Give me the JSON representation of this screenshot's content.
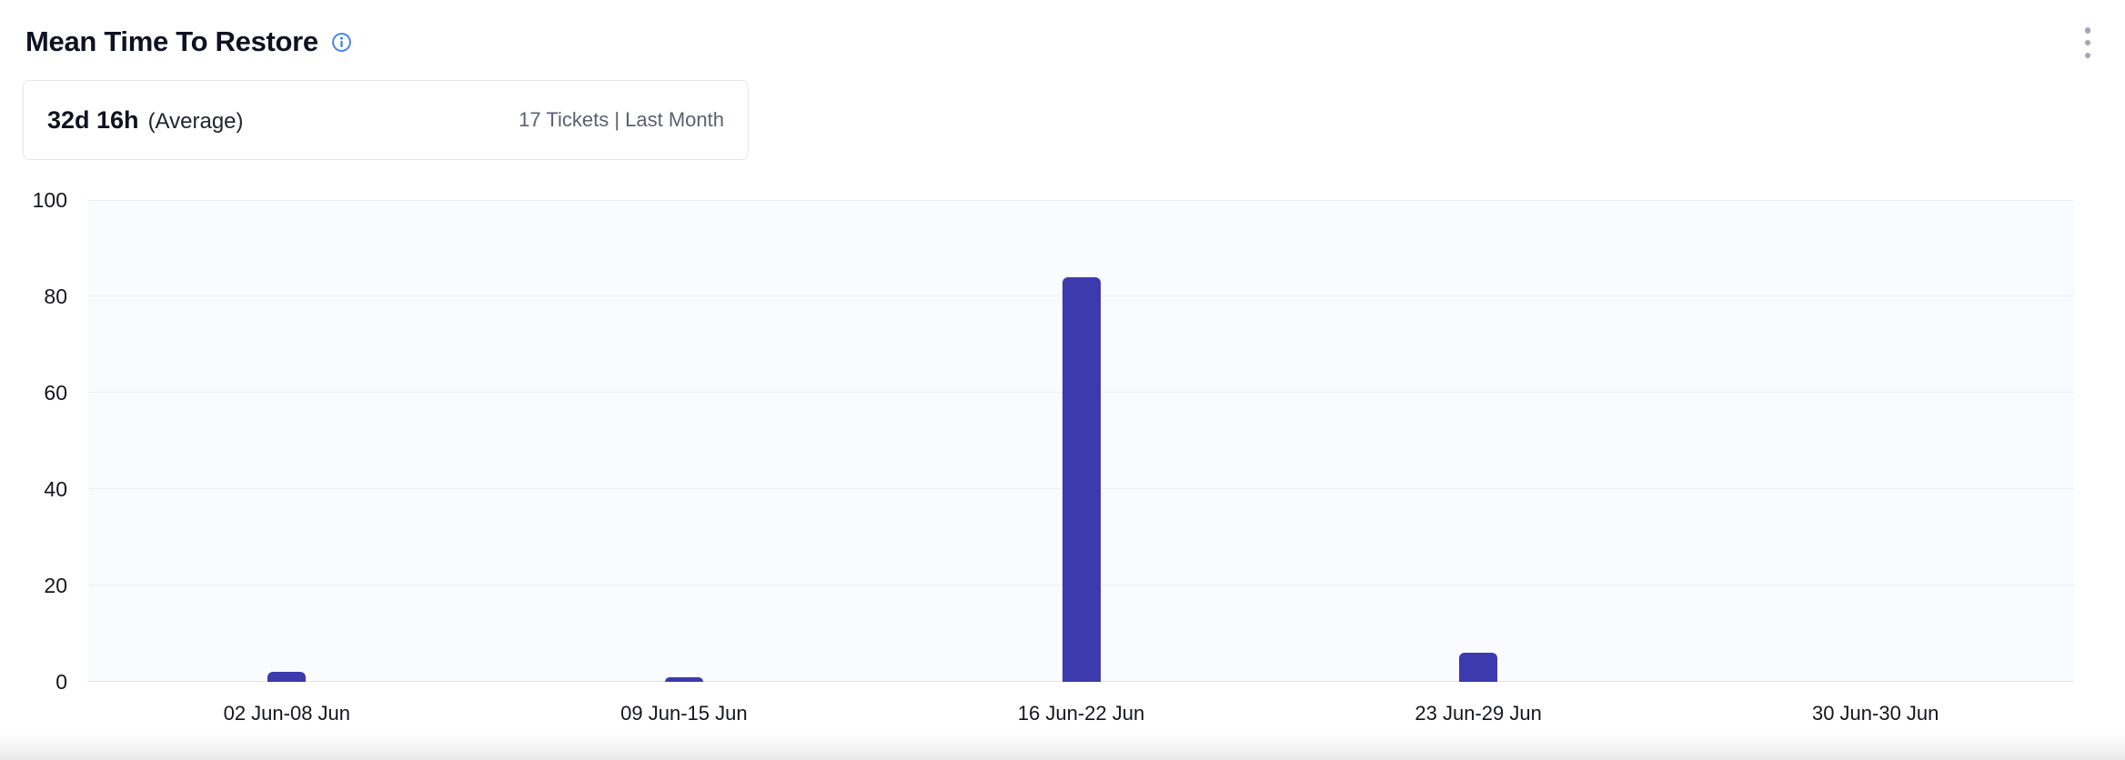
{
  "header": {
    "title": "Mean Time To Restore",
    "info_icon": "info-icon",
    "menu_icon": "kebab-menu-icon"
  },
  "summary": {
    "value": "32d 16h",
    "value_label": "(Average)",
    "meta": "17 Tickets | Last Month"
  },
  "chart_data": {
    "type": "bar",
    "categories": [
      "02 Jun-08 Jun",
      "09 Jun-15 Jun",
      "16 Jun-22 Jun",
      "23 Jun-29 Jun",
      "30 Jun-30 Jun"
    ],
    "values": [
      2,
      1,
      84,
      6,
      0
    ],
    "title": "",
    "xlabel": "",
    "ylabel": "",
    "ylim": [
      0,
      100
    ],
    "yticks": [
      0,
      20,
      40,
      60,
      80,
      100
    ],
    "grid": true,
    "legend": false,
    "bar_color": "#3c3aad",
    "plot_bg": "#fafbfe",
    "grid_color": "#edeff3"
  },
  "colors": {
    "accent_bar": "#3c3aad",
    "info_blue": "#3b82f6",
    "title_text": "#101223",
    "meta_text": "#5c5f72",
    "card_border": "#e3e5ea",
    "kebab_dot": "#a3a6b5"
  }
}
